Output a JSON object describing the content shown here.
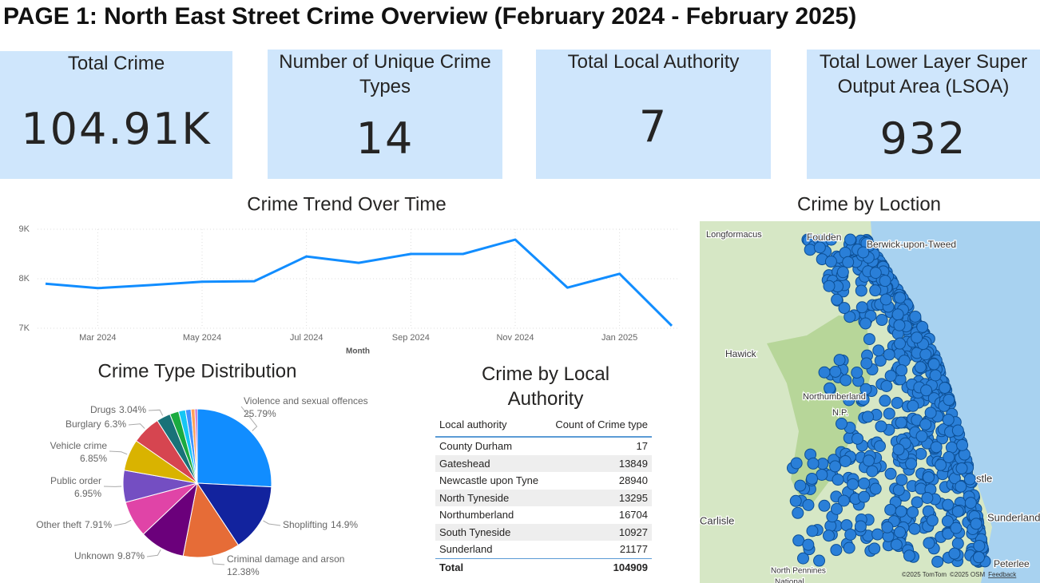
{
  "title": "PAGE 1: North East Street Crime Overview (February 2024 - February 2025)",
  "cards": [
    {
      "title": "Total Crime",
      "value": "104.91K"
    },
    {
      "title": "Number of Unique Crime Types",
      "value": "14"
    },
    {
      "title": "Total Local Authority",
      "value": "7"
    },
    {
      "title": "Total Lower Layer Super Output Area (LSOA)",
      "value": "932"
    }
  ],
  "chart_data": [
    {
      "type": "line",
      "title": "Crime Trend Over Time",
      "x_label": "Month",
      "categories": [
        null,
        "Mar 2024",
        null,
        "May 2024",
        null,
        "Jul 2024",
        null,
        "Sep 2024",
        null,
        "Nov 2024",
        null,
        "Jan 2025",
        null
      ],
      "values": [
        7900,
        7810,
        7870,
        7940,
        7950,
        8450,
        8320,
        8500,
        8500,
        8790,
        7820,
        8100,
        7050
      ],
      "color": "#118DFF",
      "ylim": [
        7000,
        9000
      ],
      "yticks": [
        {
          "value": 7000,
          "label": "7K"
        },
        {
          "value": 8000,
          "label": "8K"
        },
        {
          "value": 9000,
          "label": "9K"
        }
      ],
      "grid": true
    },
    {
      "type": "pie",
      "title": "Crime Type Distribution",
      "categories": [
        "Violence and sexual offences",
        "Shoplifting",
        "Criminal damage and arson",
        "Unknown",
        "Other theft",
        "Public order",
        "Vehicle crime",
        "Burglary",
        "Drugs",
        null,
        null,
        null,
        null,
        null
      ],
      "values": [
        25.79,
        14.9,
        12.38,
        9.87,
        7.91,
        6.95,
        6.85,
        6.3,
        3.04,
        1.95,
        1.5,
        1.2,
        0.86,
        0.5
      ],
      "value_labels": [
        "25.79%",
        "14.9%",
        "12.38%",
        "9.87%",
        "7.91%",
        "6.95%",
        "6.85%",
        "6.3%",
        "3.04%",
        null,
        null,
        null,
        null,
        null
      ],
      "colors": [
        "#118DFF",
        "#12239E",
        "#E66C37",
        "#6B007B",
        "#E044A7",
        "#744EC2",
        "#D9B300",
        "#D64550",
        "#197278",
        "#1AAB40",
        "#15C6F4",
        "#4092FF",
        "#FFA058",
        "#BE5DC9"
      ]
    }
  ],
  "table": {
    "title": "Crime by Local Authority",
    "columns": [
      "Local authority",
      "Count of Crime type"
    ],
    "rows": [
      [
        "County Durham",
        "17"
      ],
      [
        "Gateshead",
        "13849"
      ],
      [
        "Newcastle upon Tyne",
        "28940"
      ],
      [
        "North Tyneside",
        "13295"
      ],
      [
        "Northumberland",
        "16704"
      ],
      [
        "South Tyneside",
        "10927"
      ],
      [
        "Sunderland",
        "21177"
      ]
    ],
    "total": [
      "Total",
      "104909"
    ]
  },
  "map": {
    "title": "Crime by Loction",
    "labels": [
      "Longformacus",
      "Foulden",
      "Berwick-upon-Tweed",
      "Hawick",
      "Northumberland",
      "N.P.",
      "Carlisle",
      "North Pennines",
      "National",
      "stle",
      "Sunderland",
      "Peterlee"
    ],
    "attribution": [
      "©2025 TomTom",
      "©2025 OSM",
      "Feedback"
    ]
  }
}
